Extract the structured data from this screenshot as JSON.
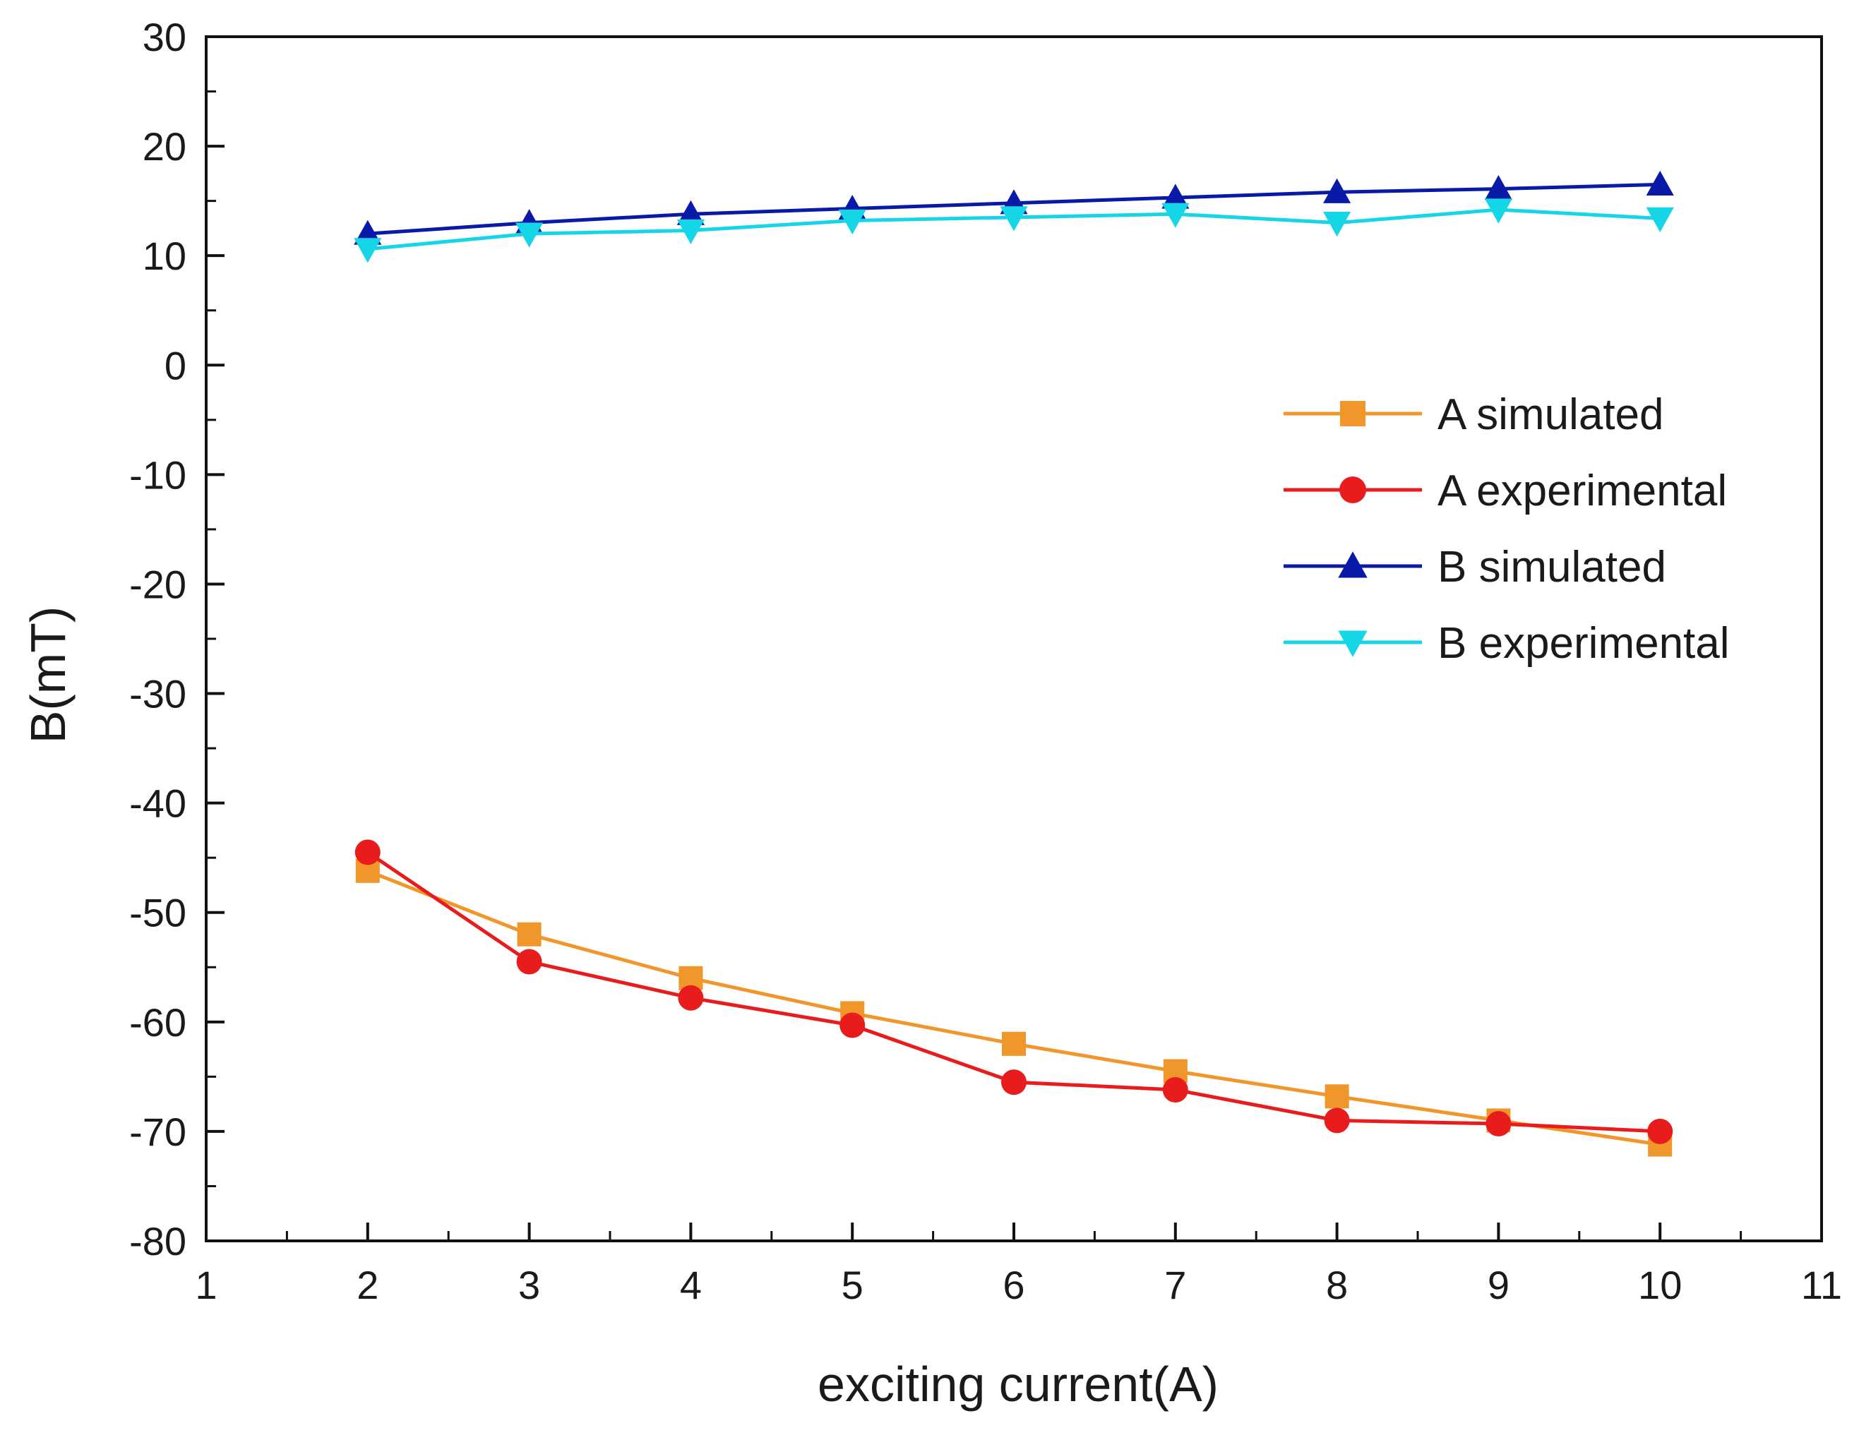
{
  "chart_data": {
    "type": "line",
    "title": "",
    "xlabel": "exciting current(A)",
    "ylabel": "B(mT)",
    "xlim": [
      1,
      11
    ],
    "ylim": [
      -80,
      30
    ],
    "xticks": [
      1,
      2,
      3,
      4,
      5,
      6,
      7,
      8,
      9,
      10,
      11
    ],
    "yticks": [
      -80,
      -70,
      -60,
      -50,
      -40,
      -30,
      -20,
      -10,
      0,
      10,
      20,
      30
    ],
    "grid": false,
    "legend_position": "right",
    "x": [
      2,
      3,
      4,
      5,
      6,
      7,
      8,
      9,
      10
    ],
    "series": [
      {
        "name": "A simulated",
        "color": "#f0962a",
        "marker": "square",
        "values": [
          -46.2,
          -52.0,
          -56.0,
          -59.2,
          -62.0,
          -64.5,
          -66.8,
          -69.0,
          -71.2
        ]
      },
      {
        "name": "A experimental",
        "color": "#e81c1c",
        "marker": "circle",
        "values": [
          -44.5,
          -54.5,
          -57.8,
          -60.3,
          -65.5,
          -66.2,
          -69.0,
          -69.3,
          -70.0
        ]
      },
      {
        "name": "B simulated",
        "color": "#0a1aa8",
        "marker": "triangle-up",
        "values": [
          12.0,
          13.0,
          13.8,
          14.3,
          14.8,
          15.3,
          15.8,
          16.1,
          16.5
        ]
      },
      {
        "name": "B experimental",
        "color": "#14d6e6",
        "marker": "triangle-down",
        "values": [
          10.6,
          12.0,
          12.3,
          13.2,
          13.5,
          13.8,
          13.0,
          14.2,
          13.4
        ]
      }
    ]
  }
}
